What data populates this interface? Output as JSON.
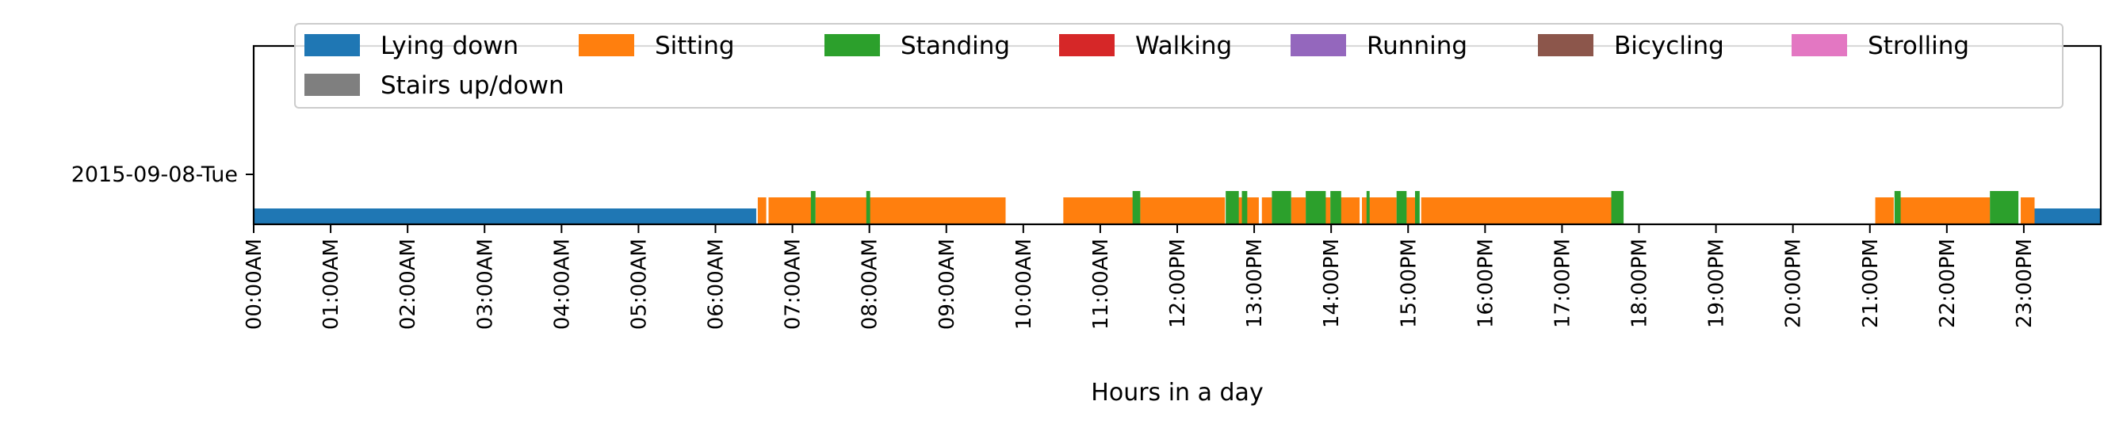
{
  "chart_data": {
    "type": "activity-timeline",
    "title": "",
    "xlabel": "Hours in a day",
    "ylabel": "",
    "xlim": [
      0,
      24
    ],
    "day_label": "2015-09-08-Tue",
    "x_ticks": [
      "00:00AM",
      "01:00AM",
      "02:00AM",
      "03:00AM",
      "04:00AM",
      "05:00AM",
      "06:00AM",
      "07:00AM",
      "08:00AM",
      "09:00AM",
      "10:00AM",
      "11:00AM",
      "12:00PM",
      "13:00PM",
      "14:00PM",
      "15:00PM",
      "16:00PM",
      "17:00PM",
      "18:00PM",
      "19:00PM",
      "20:00PM",
      "21:00PM",
      "22:00PM",
      "23:00PM"
    ],
    "legend": {
      "placement": "top",
      "entries": [
        {
          "label": "Lying down",
          "color": "#1f77b4"
        },
        {
          "label": "Sitting",
          "color": "#ff7f0e"
        },
        {
          "label": "Standing",
          "color": "#2ca02c"
        },
        {
          "label": "Walking",
          "color": "#d62728"
        },
        {
          "label": "Running",
          "color": "#9467bd"
        },
        {
          "label": "Bicycling",
          "color": "#8c564b"
        },
        {
          "label": "Strolling",
          "color": "#e377c2"
        },
        {
          "label": "Stairs up/down",
          "color": "#7f7f7f"
        }
      ]
    },
    "series": [
      {
        "name": "Lying down",
        "color": "#1f77b4",
        "segments": [
          [
            0.0,
            6.53
          ],
          [
            23.1,
            24.0
          ]
        ]
      },
      {
        "name": "Sitting",
        "color": "#ff7f0e",
        "segments": [
          [
            6.55,
            6.66
          ],
          [
            6.69,
            7.25
          ],
          [
            7.3,
            9.77
          ],
          [
            10.52,
            11.45
          ],
          [
            11.52,
            12.62
          ],
          [
            12.77,
            12.87
          ],
          [
            12.9,
            13.06
          ],
          [
            13.1,
            13.23
          ],
          [
            13.48,
            13.67
          ],
          [
            13.88,
            13.99
          ],
          [
            14.1,
            14.37
          ],
          [
            14.4,
            14.85
          ],
          [
            14.97,
            15.09
          ],
          [
            15.17,
            17.66
          ],
          [
            21.07,
            21.31
          ],
          [
            21.39,
            22.56
          ],
          [
            22.96,
            23.14
          ]
        ]
      },
      {
        "name": "Standing",
        "color": "#2ca02c",
        "segments": [
          [
            7.24,
            7.3
          ],
          [
            7.96,
            8.01
          ],
          [
            11.42,
            11.52
          ],
          [
            12.63,
            12.8
          ],
          [
            12.84,
            12.91
          ],
          [
            13.23,
            13.48
          ],
          [
            13.67,
            13.93
          ],
          [
            13.99,
            14.13
          ],
          [
            14.46,
            14.5
          ],
          [
            14.85,
            14.98
          ],
          [
            15.09,
            15.15
          ],
          [
            17.64,
            17.8
          ],
          [
            21.32,
            21.4
          ],
          [
            22.56,
            22.93
          ]
        ]
      },
      {
        "name": "Walking",
        "color": "#d62728",
        "segments": []
      },
      {
        "name": "Running",
        "color": "#9467bd",
        "segments": []
      },
      {
        "name": "Bicycling",
        "color": "#8c564b",
        "segments": []
      },
      {
        "name": "Strolling",
        "color": "#e377c2",
        "segments": []
      },
      {
        "name": "Stairs up/down",
        "color": "#7f7f7f",
        "segments": []
      }
    ]
  }
}
